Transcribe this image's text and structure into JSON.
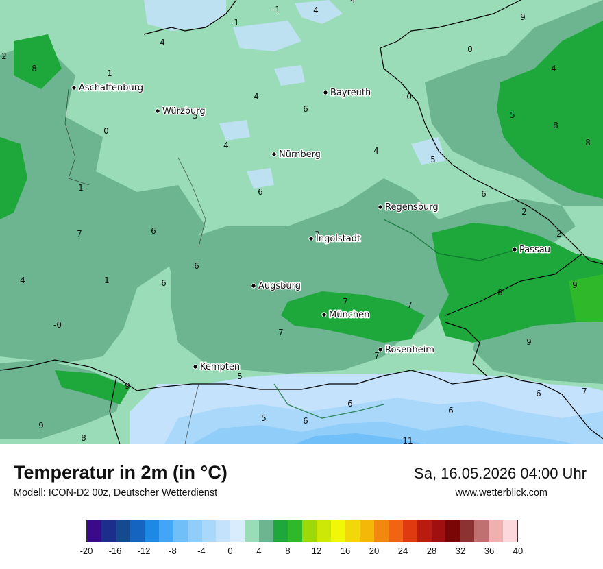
{
  "map": {
    "cities": [
      {
        "name": "Aschaffenburg"
      },
      {
        "name": "Würzburg"
      },
      {
        "name": "Bayreuth"
      },
      {
        "name": "Nürnberg"
      },
      {
        "name": "Regensburg"
      },
      {
        "name": "Ingolstadt"
      },
      {
        "name": "Passau"
      },
      {
        "name": "Augsburg"
      },
      {
        "name": "München"
      },
      {
        "name": "Rosenheim"
      },
      {
        "name": "Kempten"
      }
    ],
    "values": [
      "-1",
      "4",
      "4",
      "9",
      "-1",
      "4",
      "2",
      "8",
      "1",
      "0",
      "4",
      "-0",
      "6",
      "4",
      "5",
      "0",
      "5",
      "8",
      "4",
      "8",
      "4",
      "5",
      "1",
      "6",
      "6",
      "2",
      "7",
      "6",
      "2",
      "2",
      "4",
      "1",
      "6",
      "6",
      "9",
      "7",
      "7",
      "8",
      "-0",
      "7",
      "9",
      "9",
      "5",
      "7",
      "6",
      "6",
      "7",
      "9",
      "8",
      "5",
      "6",
      "6",
      "11"
    ]
  },
  "footer": {
    "title": "Temperatur in 2m (in °C)",
    "model": "Modell: ICON-D2 00z, Deutscher Wetterdienst",
    "datetime": "Sa, 16.05.2026 04:00 Uhr",
    "site": "www.wetterblick.com"
  },
  "legend": {
    "colors": [
      "#3a0a8a",
      "#1c2e8c",
      "#164a8e",
      "#1565c0",
      "#1e88e5",
      "#42a5f5",
      "#70bff8",
      "#90cdf9",
      "#a9d8fb",
      "#c4e2fb",
      "#d9ecfd",
      "#9adcb8",
      "#6cb590",
      "#1ea83c",
      "#2fb82a",
      "#9cd80a",
      "#cde806",
      "#f0f808",
      "#f2d80a",
      "#f4b808",
      "#f38810",
      "#f06414",
      "#e03a10",
      "#b81c10",
      "#a01010",
      "#7a0606",
      "#8c3232",
      "#c07070",
      "#f0b0b0",
      "#fcd8dc"
    ],
    "ticks": [
      "-20",
      "-16",
      "-12",
      "-8",
      "-4",
      "0",
      "4",
      "8",
      "12",
      "16",
      "20",
      "24",
      "28",
      "32",
      "36",
      "40"
    ]
  }
}
